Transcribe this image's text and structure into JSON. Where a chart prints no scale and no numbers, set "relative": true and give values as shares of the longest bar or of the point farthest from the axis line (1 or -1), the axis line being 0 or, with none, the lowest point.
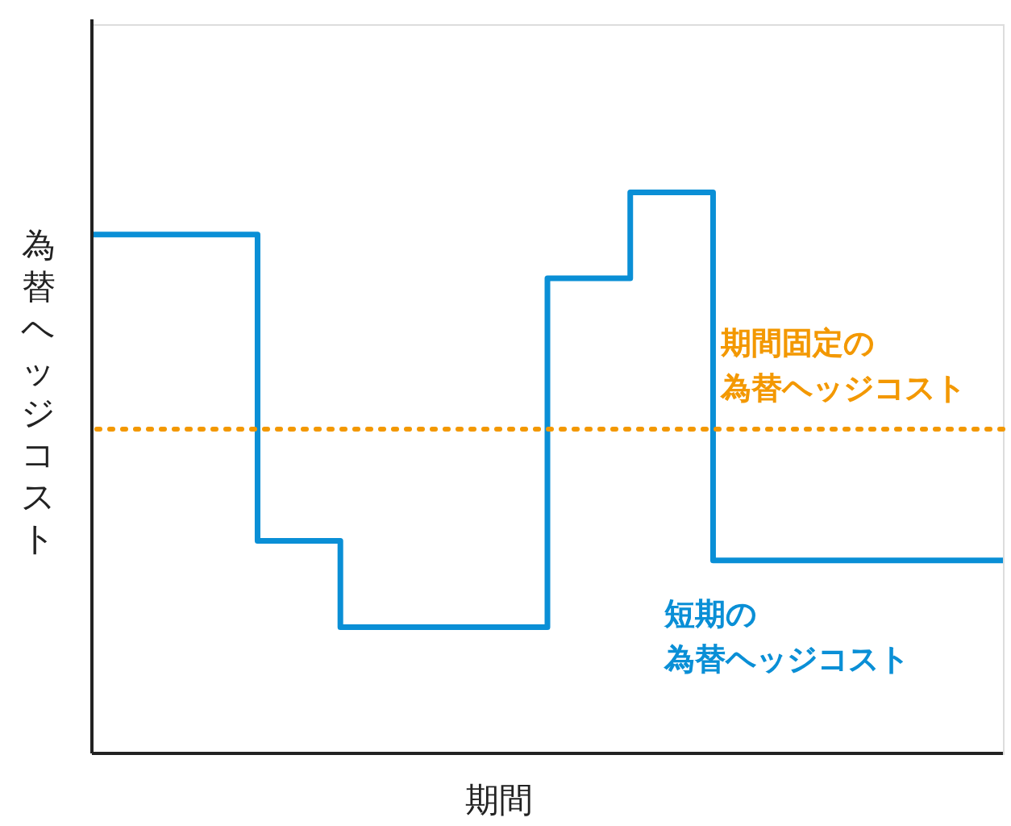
{
  "chart_data": {
    "type": "step",
    "xlabel": "期間",
    "ylabel": "為替ヘッジコスト",
    "relative": true,
    "categories": [
      null,
      null,
      null,
      null,
      null,
      null,
      null,
      null,
      null,
      null,
      null,
      null,
      null,
      null,
      null,
      null,
      null,
      null,
      null,
      null,
      null,
      null,
      null
    ],
    "series": [
      {
        "name": "短期の為替ヘッジコスト",
        "color": "#0a8fd6",
        "values": [
          0.925,
          0.925,
          0.925,
          0.925,
          0.379,
          0.379,
          0.225,
          0.225,
          0.225,
          0.225,
          0.225,
          0.847,
          0.847,
          1,
          1,
          0.344,
          0.344,
          0.344,
          0.344,
          0.344,
          0.344,
          0.344,
          0.344
        ]
      }
    ],
    "ref_lines": [
      {
        "axis": "y",
        "value": 0.578,
        "label": "期間固定の為替ヘッジコスト",
        "color": "#f39800",
        "line_style": "dotted"
      }
    ],
    "grid": false,
    "legend": false
  }
}
